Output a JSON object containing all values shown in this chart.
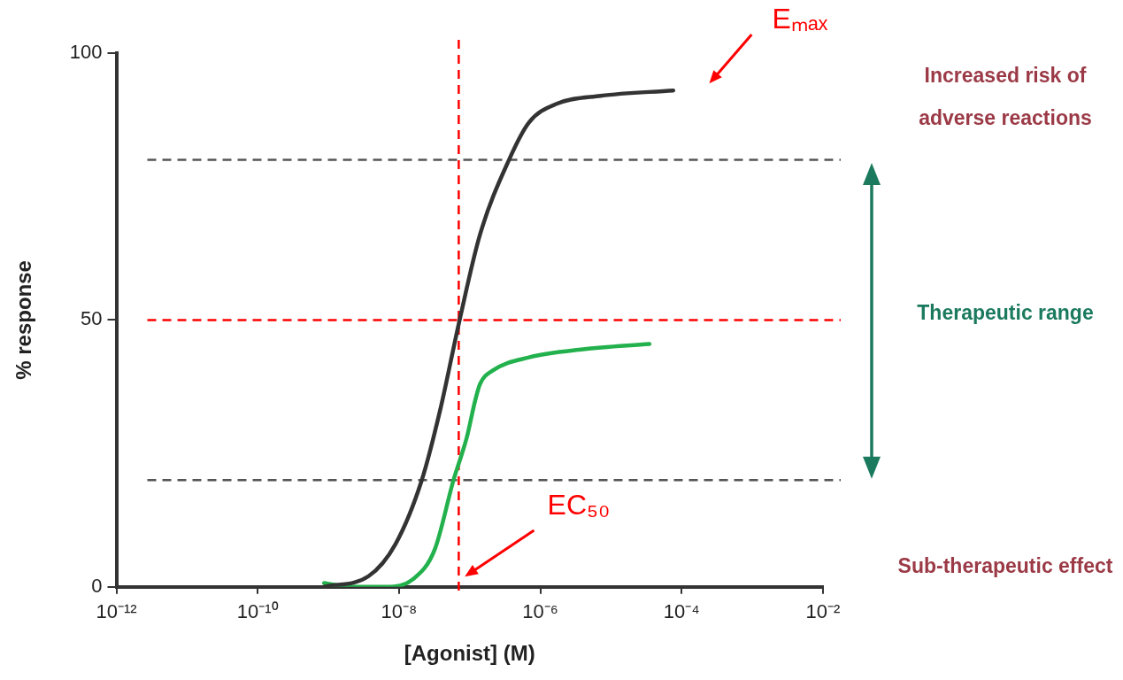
{
  "chart_data": {
    "type": "line",
    "xlabel": "[Agonist] (M)",
    "ylabel": "% response",
    "log": "x",
    "xlim": [
      1e-12,
      0.01
    ],
    "xticks": [
      {
        "value": 1e-12,
        "label": "10⁻¹²"
      },
      {
        "value": 1e-10,
        "label": "10⁻¹⁰"
      },
      {
        "value": 1e-08,
        "label": "10⁻⁸"
      },
      {
        "value": 1e-06,
        "label": "10⁻⁶"
      },
      {
        "value": 0.0001,
        "label": "10⁻⁴"
      },
      {
        "value": 0.01,
        "label": "10⁻²"
      }
    ],
    "ylim": [
      0,
      100
    ],
    "yticks": [
      0,
      50,
      100
    ],
    "marker": "none",
    "line_style": "solid",
    "series": [
      {
        "color": "#333333",
        "x": [
          8.7e-10,
          3.7e-09,
          8.9e-09,
          2.1e-08,
          3.8e-08,
          7.2e-08,
          1.4e-07,
          3.6e-07,
          6.9e-07,
          1.7e-06,
          7.1e-06,
          7.6e-05
        ],
        "values": [
          0,
          2,
          8,
          20,
          33,
          50,
          66,
          80,
          87,
          90.5,
          92,
          93
        ]
      },
      {
        "color": "#22b14c",
        "x": [
          8.7e-10,
          2.1e-09,
          6.6e-09,
          1.6e-08,
          3.2e-08,
          5.9e-08,
          9.1e-08,
          1.2e-07,
          1.4e-07,
          2.1e-07,
          6.9e-07,
          4e-06,
          3.5e-05
        ],
        "values": [
          0.7,
          0,
          0,
          1.5,
          7,
          20,
          28,
          35,
          38,
          40.5,
          43,
          44.5,
          45.5
        ]
      }
    ],
    "ref_lines": [
      {
        "axis": "y",
        "value": 80,
        "color": "#555555",
        "line_style": "dashed"
      },
      {
        "axis": "y",
        "value": 20,
        "color": "#555555",
        "line_style": "dashed"
      },
      {
        "axis": "y",
        "value": 50,
        "color": "#ff0000",
        "line_style": "dashed"
      },
      {
        "axis": "x",
        "value": 7e-08,
        "color": "#ff0000",
        "line_style": "dashed"
      }
    ],
    "annotations": [
      "Eₘₐₓ",
      "EC₅₀",
      "Increased risk of adverse reactions",
      "Therapeutic range",
      "Sub-therapeutic effect"
    ]
  }
}
